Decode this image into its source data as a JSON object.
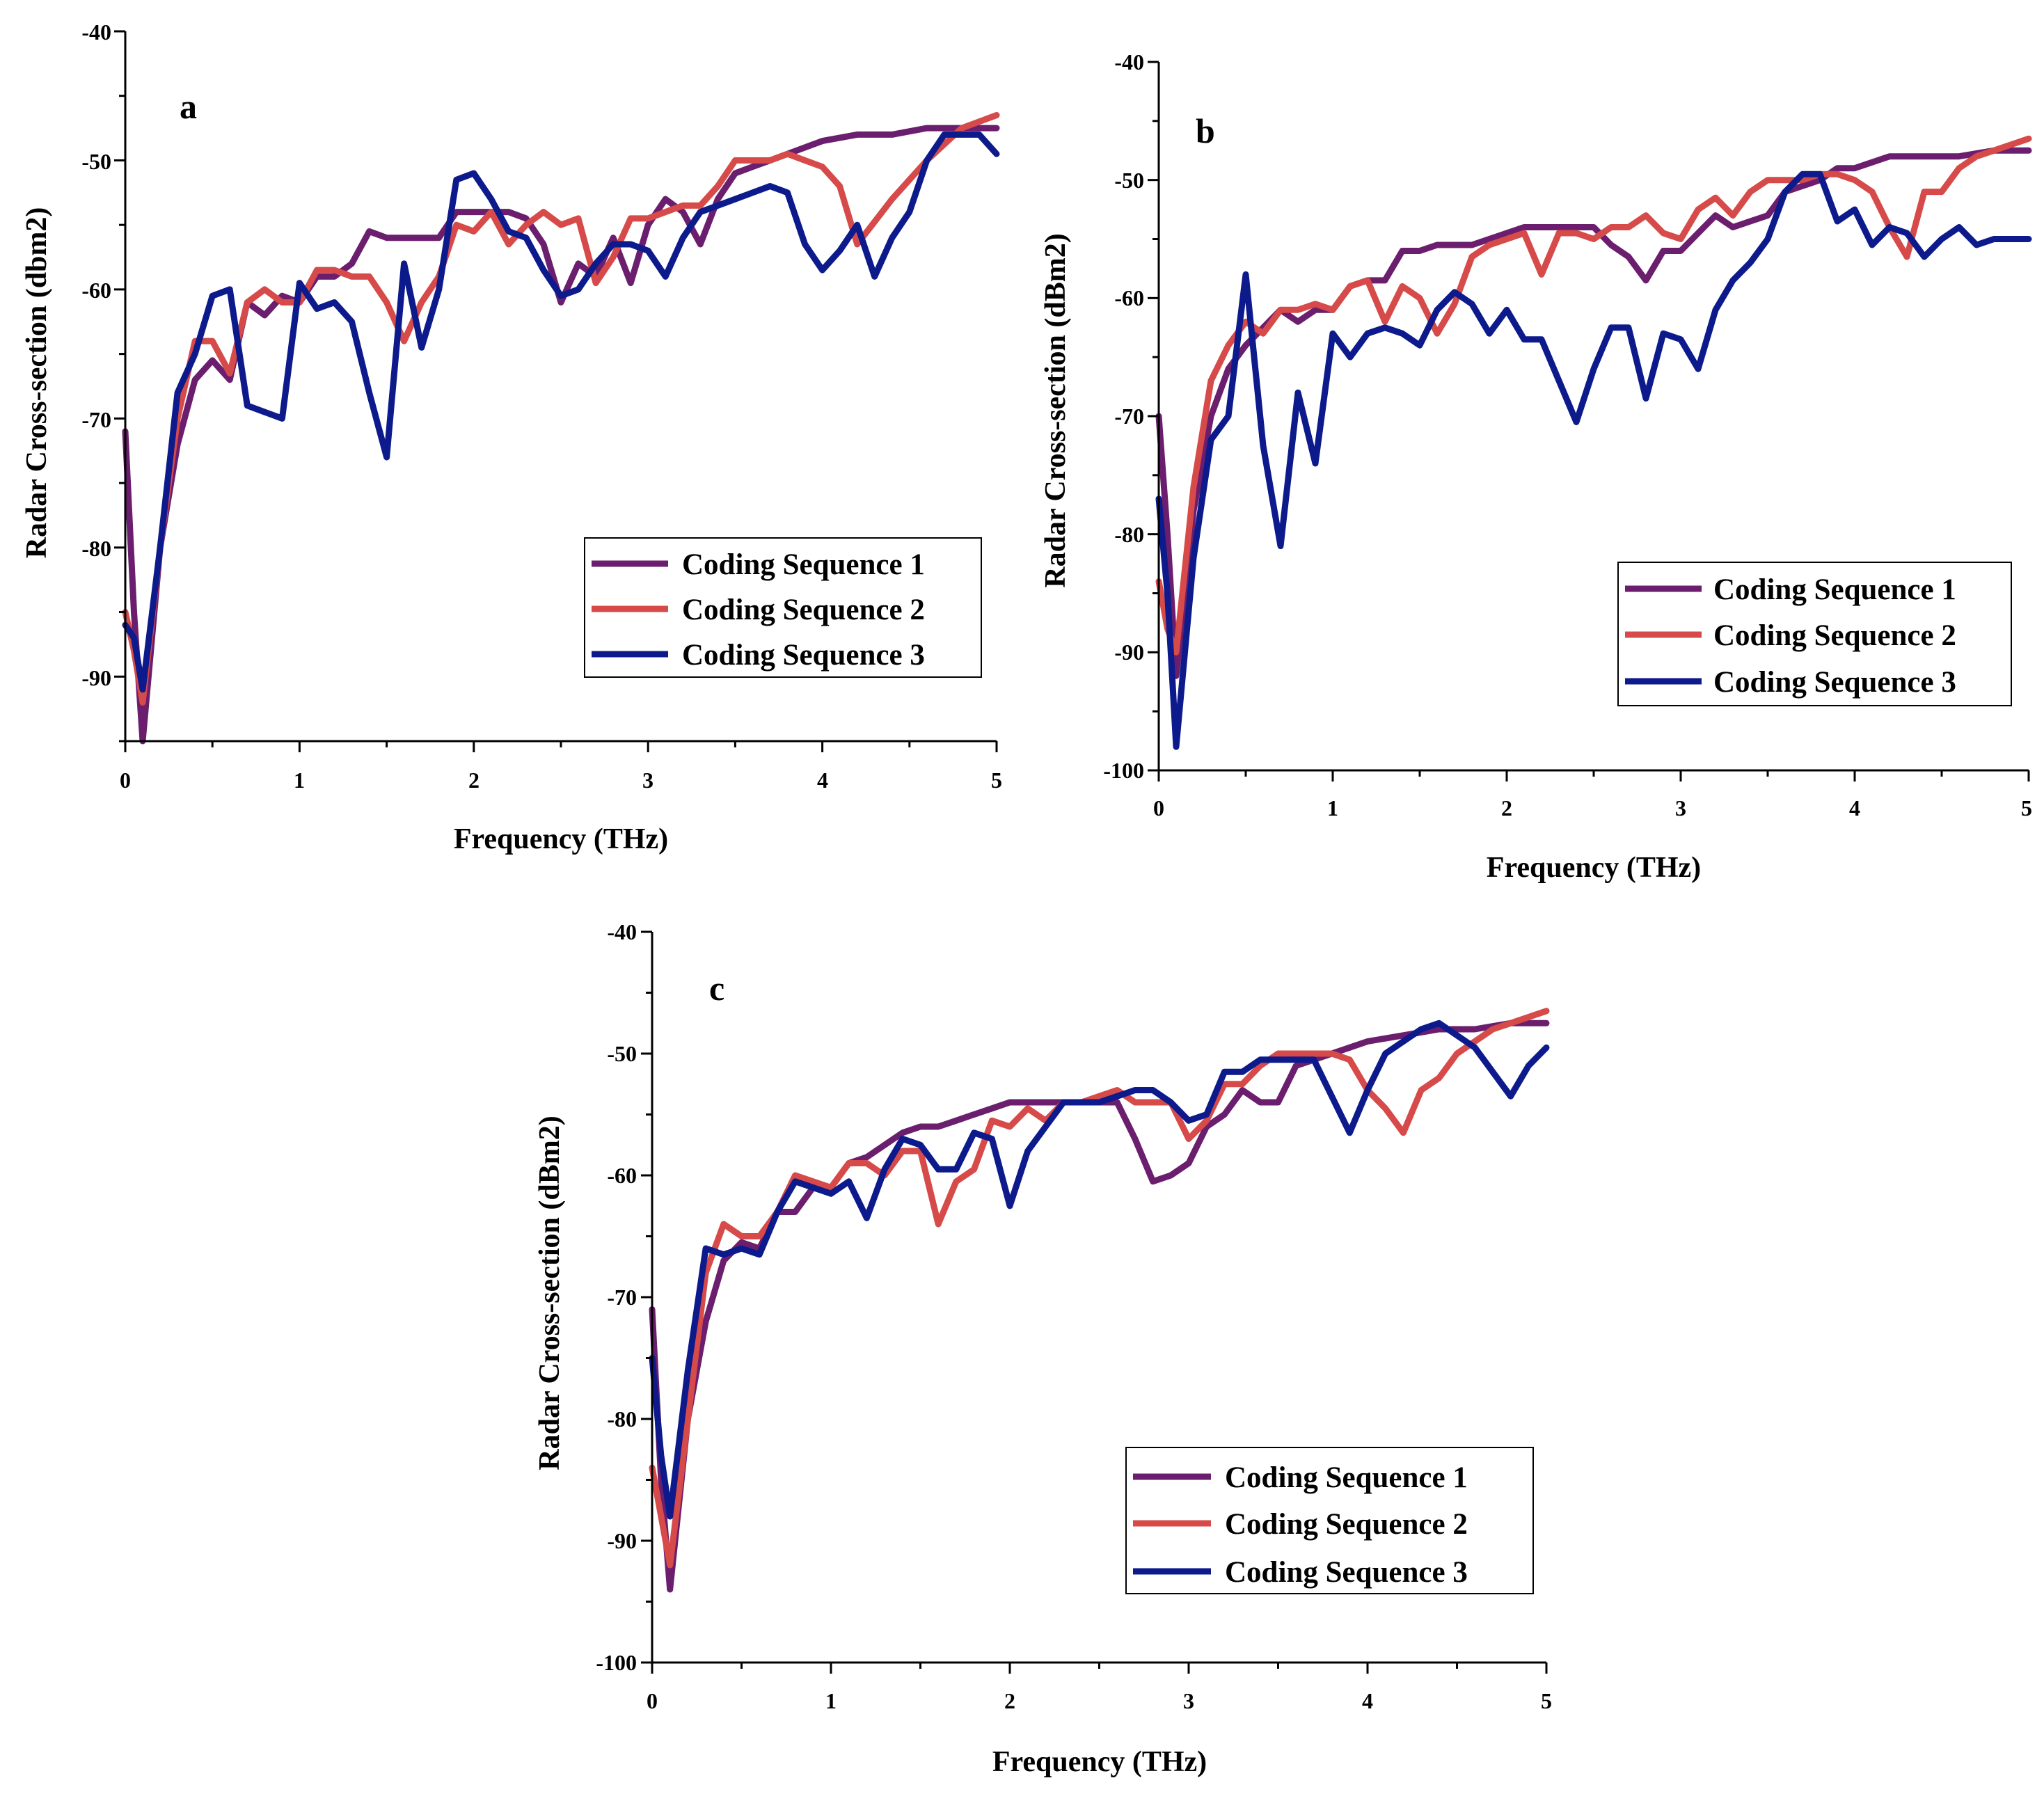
{
  "chart_data": [
    {
      "type": "line",
      "panel_label": "a",
      "xlabel": "Frequency (THz)",
      "ylabel": "Radar Cross-section (dbm2)",
      "xlim": [
        0,
        5
      ],
      "ylim": [
        -95,
        -40
      ],
      "xticks": [
        0,
        1,
        2,
        3,
        4,
        5
      ],
      "yticks": [
        -40,
        -50,
        -60,
        -70,
        -80,
        -90
      ],
      "legend_position": "lower-right",
      "series": [
        {
          "name": "Coding Sequence 1",
          "color": "#6b1e6e",
          "x": [
            0,
            0.05,
            0.1,
            0.2,
            0.3,
            0.4,
            0.5,
            0.6,
            0.7,
            0.8,
            0.9,
            1.0,
            1.1,
            1.2,
            1.3,
            1.4,
            1.5,
            1.6,
            1.7,
            1.8,
            1.9,
            2.0,
            2.1,
            2.2,
            2.3,
            2.4,
            2.5,
            2.6,
            2.7,
            2.8,
            2.9,
            3.0,
            3.1,
            3.2,
            3.3,
            3.4,
            3.5,
            3.6,
            3.7,
            3.8,
            3.9,
            4.0,
            4.2,
            4.4,
            4.6,
            4.8,
            5.0
          ],
          "y": [
            -71,
            -85,
            -95,
            -80,
            -72,
            -67,
            -65.5,
            -67,
            -61,
            -62,
            -60.5,
            -61,
            -59,
            -59,
            -58,
            -55.5,
            -56,
            -56,
            -56,
            -56,
            -54,
            -54,
            -54,
            -54,
            -54.5,
            -56.5,
            -61,
            -58,
            -59,
            -56,
            -59.5,
            -55,
            -53,
            -54,
            -56.5,
            -53,
            -51,
            -50.5,
            -50,
            -49.5,
            -49,
            -48.5,
            -48,
            -48,
            -47.5,
            -47.5,
            -47.5
          ]
        },
        {
          "name": "Coding Sequence 2",
          "color": "#d64a4a",
          "x": [
            0,
            0.05,
            0.1,
            0.2,
            0.3,
            0.4,
            0.5,
            0.6,
            0.7,
            0.8,
            0.9,
            1.0,
            1.1,
            1.2,
            1.3,
            1.4,
            1.5,
            1.6,
            1.7,
            1.8,
            1.9,
            2.0,
            2.1,
            2.2,
            2.3,
            2.4,
            2.5,
            2.6,
            2.7,
            2.8,
            2.9,
            3.0,
            3.1,
            3.2,
            3.3,
            3.4,
            3.5,
            3.6,
            3.7,
            3.8,
            3.9,
            4.0,
            4.1,
            4.2,
            4.4,
            4.6,
            4.8,
            5.0
          ],
          "y": [
            -85,
            -88,
            -92,
            -80,
            -70,
            -64,
            -64,
            -66.5,
            -61,
            -60,
            -61,
            -61,
            -58.5,
            -58.5,
            -59,
            -59,
            -61,
            -64,
            -61,
            -59,
            -55,
            -55.5,
            -54,
            -56.5,
            -55,
            -54,
            -55,
            -54.5,
            -59.5,
            -57.5,
            -54.5,
            -54.5,
            -54,
            -53.5,
            -53.5,
            -52,
            -50,
            -50,
            -50,
            -49.5,
            -50,
            -50.5,
            -52,
            -56.5,
            -53,
            -50,
            -47.5,
            -46.5
          ]
        },
        {
          "name": "Coding Sequence 3",
          "color": "#0d1a8c",
          "x": [
            0,
            0.05,
            0.1,
            0.2,
            0.3,
            0.4,
            0.5,
            0.6,
            0.7,
            0.8,
            0.9,
            1.0,
            1.1,
            1.2,
            1.3,
            1.4,
            1.5,
            1.6,
            1.7,
            1.8,
            1.9,
            2.0,
            2.1,
            2.2,
            2.3,
            2.4,
            2.5,
            2.6,
            2.7,
            2.8,
            2.9,
            3.0,
            3.1,
            3.2,
            3.3,
            3.4,
            3.5,
            3.6,
            3.7,
            3.8,
            3.9,
            4.0,
            4.1,
            4.2,
            4.3,
            4.4,
            4.5,
            4.6,
            4.7,
            4.8,
            4.9,
            5.0
          ],
          "y": [
            -86,
            -87,
            -91,
            -80,
            -68,
            -65,
            -60.5,
            -60,
            -69,
            -69.5,
            -70,
            -59.5,
            -61.5,
            -61,
            -62.5,
            -68,
            -73,
            -58,
            -64.5,
            -60,
            -51.5,
            -51,
            -53,
            -55.5,
            -56,
            -58.5,
            -60.5,
            -60,
            -58,
            -56.5,
            -56.5,
            -57,
            -59,
            -56,
            -54,
            -53.5,
            -53,
            -52.5,
            -52,
            -52.5,
            -56.5,
            -58.5,
            -57,
            -55,
            -59,
            -56,
            -54,
            -50,
            -48,
            -48,
            -48,
            -49.5
          ]
        }
      ]
    },
    {
      "type": "line",
      "panel_label": "b",
      "xlabel": "Frequency (THz)",
      "ylabel": "Radar Cross-section (dBm2)",
      "xlim": [
        0,
        5
      ],
      "ylim": [
        -100,
        -40
      ],
      "xticks": [
        0,
        1,
        2,
        3,
        4,
        5
      ],
      "yticks": [
        -40,
        -50,
        -60,
        -70,
        -80,
        -90,
        -100
      ],
      "legend_position": "lower-right",
      "series": [
        {
          "name": "Coding Sequence 1",
          "color": "#6b1e6e",
          "x": [
            0,
            0.05,
            0.1,
            0.2,
            0.3,
            0.4,
            0.5,
            0.6,
            0.7,
            0.8,
            0.9,
            1.0,
            1.1,
            1.2,
            1.3,
            1.4,
            1.5,
            1.6,
            1.7,
            1.8,
            1.9,
            2.0,
            2.1,
            2.2,
            2.3,
            2.4,
            2.5,
            2.6,
            2.7,
            2.8,
            2.9,
            3.0,
            3.1,
            3.2,
            3.3,
            3.4,
            3.5,
            3.6,
            3.7,
            3.8,
            3.9,
            4.0,
            4.2,
            4.4,
            4.6,
            4.8,
            5.0
          ],
          "y": [
            -70,
            -80,
            -92,
            -78,
            -70,
            -66,
            -64,
            -62.5,
            -61,
            -62,
            -61,
            -61,
            -59,
            -58.5,
            -58.5,
            -56,
            -56,
            -55.5,
            -55.5,
            -55.5,
            -55,
            -54.5,
            -54,
            -54,
            -54,
            -54,
            -54,
            -55.5,
            -56.5,
            -58.5,
            -56,
            -56,
            -54.5,
            -53,
            -54,
            -53.5,
            -53,
            -51,
            -50.5,
            -50,
            -49,
            -49,
            -48,
            -48,
            -48,
            -47.5,
            -47.5
          ]
        },
        {
          "name": "Coding Sequence 2",
          "color": "#d64a4a",
          "x": [
            0,
            0.05,
            0.1,
            0.2,
            0.3,
            0.4,
            0.5,
            0.6,
            0.7,
            0.8,
            0.9,
            1.0,
            1.1,
            1.2,
            1.3,
            1.4,
            1.5,
            1.6,
            1.7,
            1.8,
            1.9,
            2.0,
            2.1,
            2.2,
            2.3,
            2.4,
            2.5,
            2.6,
            2.7,
            2.8,
            2.9,
            3.0,
            3.1,
            3.2,
            3.3,
            3.4,
            3.5,
            3.6,
            3.7,
            3.8,
            3.9,
            4.0,
            4.1,
            4.2,
            4.3,
            4.4,
            4.5,
            4.6,
            4.7,
            4.8,
            4.9,
            5.0
          ],
          "y": [
            -84,
            -88,
            -90,
            -76,
            -67,
            -64,
            -62,
            -63,
            -61,
            -61,
            -60.5,
            -61,
            -59,
            -58.5,
            -62,
            -59,
            -60,
            -63,
            -60.5,
            -56.5,
            -55.5,
            -55,
            -54.5,
            -58,
            -54.5,
            -54.5,
            -55,
            -54,
            -54,
            -53,
            -54.5,
            -55,
            -52.5,
            -51.5,
            -53,
            -51,
            -50,
            -50,
            -50,
            -49.5,
            -49.5,
            -50,
            -51,
            -54,
            -56.5,
            -51,
            -51,
            -49,
            -48,
            -47.5,
            -47,
            -46.5
          ]
        },
        {
          "name": "Coding Sequence 3",
          "color": "#0d1a8c",
          "x": [
            0,
            0.05,
            0.1,
            0.2,
            0.3,
            0.4,
            0.5,
            0.6,
            0.7,
            0.8,
            0.9,
            1.0,
            1.1,
            1.2,
            1.3,
            1.4,
            1.5,
            1.6,
            1.7,
            1.8,
            1.9,
            2.0,
            2.1,
            2.2,
            2.3,
            2.4,
            2.5,
            2.6,
            2.7,
            2.8,
            2.9,
            3.0,
            3.1,
            3.2,
            3.3,
            3.4,
            3.5,
            3.6,
            3.7,
            3.8,
            3.9,
            4.0,
            4.1,
            4.2,
            4.3,
            4.4,
            4.5,
            4.6,
            4.7,
            4.8,
            4.9,
            5.0
          ],
          "y": [
            -77,
            -85,
            -98,
            -82,
            -72,
            -70,
            -58,
            -72.5,
            -81,
            -68,
            -74,
            -63,
            -65,
            -63,
            -62.5,
            -63,
            -64,
            -61,
            -59.5,
            -60.5,
            -63,
            -61,
            -63.5,
            -63.5,
            -67,
            -70.5,
            -66,
            -62.5,
            -62.5,
            -68.5,
            -63,
            -63.5,
            -66,
            -61,
            -58.5,
            -57,
            -55,
            -51,
            -49.5,
            -49.5,
            -53.5,
            -52.5,
            -55.5,
            -54,
            -54.5,
            -56.5,
            -55,
            -54,
            -55.5,
            -55,
            -55,
            -55
          ]
        }
      ]
    },
    {
      "type": "line",
      "panel_label": "c",
      "xlabel": "Frequency (THz)",
      "ylabel": "Radar Cross-section (dBm2)",
      "xlim": [
        0,
        5
      ],
      "ylim": [
        -100,
        -40
      ],
      "xticks": [
        0,
        1,
        2,
        3,
        4,
        5
      ],
      "yticks": [
        -40,
        -50,
        -60,
        -70,
        -80,
        -90,
        -100
      ],
      "legend_position": "lower-right",
      "series": [
        {
          "name": "Coding Sequence 1",
          "color": "#6b1e6e",
          "x": [
            0,
            0.05,
            0.1,
            0.2,
            0.3,
            0.4,
            0.5,
            0.6,
            0.7,
            0.8,
            0.9,
            1.0,
            1.1,
            1.2,
            1.3,
            1.4,
            1.5,
            1.6,
            1.7,
            1.8,
            1.9,
            2.0,
            2.1,
            2.2,
            2.3,
            2.4,
            2.5,
            2.6,
            2.7,
            2.8,
            2.9,
            3.0,
            3.1,
            3.2,
            3.3,
            3.4,
            3.5,
            3.6,
            3.7,
            3.8,
            3.9,
            4.0,
            4.2,
            4.4,
            4.6,
            4.8,
            5.0
          ],
          "y": [
            -71,
            -85,
            -94,
            -80,
            -72,
            -67,
            -65.5,
            -66,
            -63,
            -63,
            -61,
            -61,
            -59,
            -58.5,
            -57.5,
            -56.5,
            -56,
            -56,
            -55.5,
            -55,
            -54.5,
            -54,
            -54,
            -54,
            -54,
            -54,
            -54,
            -54,
            -57,
            -60.5,
            -60,
            -59,
            -56,
            -55,
            -53,
            -54,
            -54,
            -51,
            -50.5,
            -50,
            -49.5,
            -49,
            -48.5,
            -48,
            -48,
            -47.5,
            -47.5
          ]
        },
        {
          "name": "Coding Sequence 2",
          "color": "#d64a4a",
          "x": [
            0,
            0.05,
            0.1,
            0.2,
            0.3,
            0.4,
            0.5,
            0.6,
            0.7,
            0.8,
            0.9,
            1.0,
            1.1,
            1.2,
            1.3,
            1.4,
            1.5,
            1.6,
            1.7,
            1.8,
            1.9,
            2.0,
            2.1,
            2.2,
            2.3,
            2.4,
            2.5,
            2.6,
            2.7,
            2.8,
            2.9,
            3.0,
            3.1,
            3.2,
            3.3,
            3.4,
            3.5,
            3.6,
            3.7,
            3.8,
            3.9,
            4.0,
            4.1,
            4.2,
            4.3,
            4.4,
            4.5,
            4.6,
            4.7,
            4.8,
            4.9,
            5.0
          ],
          "y": [
            -84,
            -88,
            -92,
            -80,
            -68,
            -64,
            -65,
            -65,
            -63,
            -60,
            -60.5,
            -61,
            -59,
            -59,
            -60,
            -58,
            -58,
            -64,
            -60.5,
            -59.5,
            -55.5,
            -56,
            -54.5,
            -55.5,
            -54,
            -54,
            -53.5,
            -53,
            -54,
            -54,
            -54,
            -57,
            -55.5,
            -52.5,
            -52.5,
            -51,
            -50,
            -50,
            -50,
            -50,
            -50.5,
            -53,
            -54.5,
            -56.5,
            -53,
            -52,
            -50,
            -49,
            -48,
            -47.5,
            -47,
            -46.5
          ]
        },
        {
          "name": "Coding Sequence 3",
          "color": "#0d1a8c",
          "x": [
            0,
            0.05,
            0.1,
            0.2,
            0.3,
            0.4,
            0.5,
            0.6,
            0.7,
            0.8,
            0.9,
            1.0,
            1.1,
            1.2,
            1.3,
            1.4,
            1.5,
            1.6,
            1.7,
            1.8,
            1.9,
            2.0,
            2.1,
            2.2,
            2.3,
            2.4,
            2.5,
            2.6,
            2.7,
            2.8,
            2.9,
            3.0,
            3.1,
            3.2,
            3.3,
            3.4,
            3.5,
            3.6,
            3.7,
            3.8,
            3.9,
            4.0,
            4.1,
            4.2,
            4.3,
            4.4,
            4.5,
            4.6,
            4.7,
            4.8,
            4.9,
            5.0
          ],
          "y": [
            -75,
            -83,
            -88,
            -76,
            -66,
            -66.5,
            -66,
            -66.5,
            -63,
            -60.5,
            -61,
            -61.5,
            -60.5,
            -63.5,
            -59.5,
            -57,
            -57.5,
            -59.5,
            -59.5,
            -56.5,
            -57,
            -62.5,
            -58,
            -56,
            -54,
            -54,
            -54,
            -53.5,
            -53,
            -53,
            -54,
            -55.5,
            -55,
            -51.5,
            -51.5,
            -50.5,
            -50.5,
            -50.5,
            -50.5,
            -53.5,
            -56.5,
            -53,
            -50,
            -49,
            -48,
            -47.5,
            -48.5,
            -49.5,
            -51.5,
            -53.5,
            -51,
            -49.5
          ]
        }
      ]
    }
  ]
}
